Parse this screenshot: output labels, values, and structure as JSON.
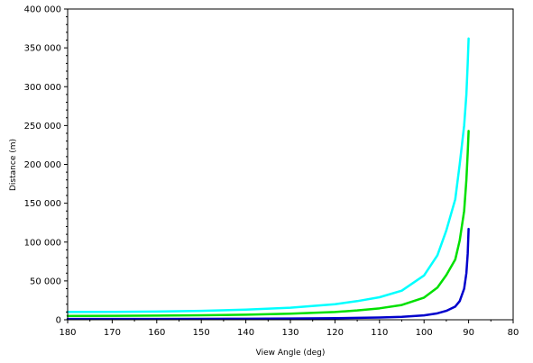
{
  "chart_data": {
    "type": "line",
    "title": "",
    "xlabel": "View Angle (deg)",
    "ylabel": "Distance (m)",
    "xlim": [
      180,
      80
    ],
    "ylim": [
      0,
      400000
    ],
    "x_reversed": true,
    "grid": false,
    "legend": "none",
    "x_ticks": [
      "180",
      "170",
      "160",
      "150",
      "140",
      "130",
      "120",
      "110",
      "100",
      "90",
      "80"
    ],
    "y_ticks": [
      "0",
      "50 000",
      "100 000",
      "150 000",
      "200 000",
      "250 000",
      "300 000",
      "350 000",
      "400 000"
    ],
    "series": [
      {
        "color": "#00ffff",
        "x": [
          180,
          170,
          160,
          150,
          140,
          130,
          120,
          115,
          110,
          105,
          100,
          97,
          95,
          93,
          92,
          91,
          90.5,
          90.2,
          90
        ],
        "values": [
          10000,
          10100,
          10600,
          11500,
          13000,
          15500,
          20000,
          24000,
          29000,
          37500,
          57000,
          83000,
          115000,
          155000,
          200000,
          250000,
          290000,
          330000,
          362000
        ]
      },
      {
        "color": "#00e000",
        "x": [
          180,
          170,
          160,
          150,
          140,
          130,
          120,
          115,
          110,
          105,
          100,
          97,
          95,
          93,
          92,
          91,
          90.5,
          90.2,
          90
        ],
        "values": [
          5000,
          5100,
          5300,
          5800,
          6500,
          7800,
          10000,
          12000,
          14700,
          19000,
          28500,
          41500,
          57500,
          77500,
          102000,
          140000,
          180000,
          215000,
          243000
        ]
      },
      {
        "color": "#0000cc",
        "x": [
          180,
          170,
          160,
          150,
          140,
          130,
          120,
          115,
          110,
          105,
          100,
          97,
          95,
          93,
          92,
          91,
          90.5,
          90.2,
          90
        ],
        "values": [
          1000,
          1020,
          1060,
          1150,
          1300,
          1560,
          2000,
          2400,
          2900,
          3800,
          5700,
          8300,
          11500,
          17000,
          24000,
          40000,
          60000,
          85000,
          117000
        ]
      }
    ]
  }
}
